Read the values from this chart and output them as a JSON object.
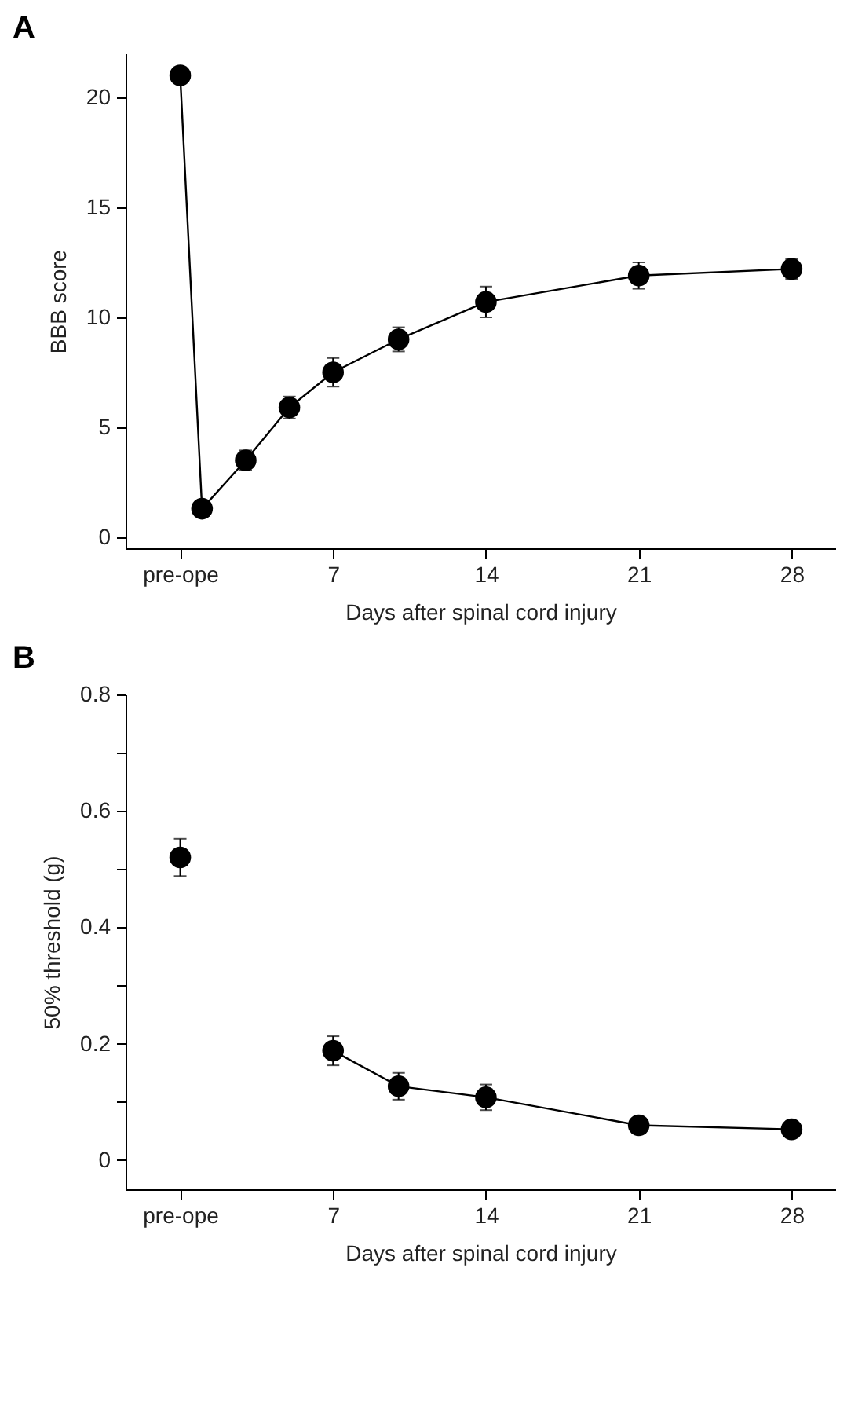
{
  "chart_data": [
    {
      "type": "line",
      "title": "A",
      "xlabel": "Days after spinal cord injury",
      "ylabel": "BBB score",
      "marker": "circle",
      "xlim": [
        -2.5,
        30
      ],
      "xticks": [
        {
          "value": 0,
          "label": "pre-ope"
        },
        7,
        14,
        21,
        28
      ],
      "ylim": [
        -0.5,
        22
      ],
      "yticks": [
        0,
        5,
        10,
        15,
        20
      ],
      "series": [
        {
          "color": "#000000",
          "x": [
            0,
            1,
            3,
            5,
            7,
            10,
            14,
            21,
            28
          ],
          "values": [
            21,
            1.3,
            3.5,
            5.9,
            7.5,
            9.0,
            10.7,
            11.9,
            12.2
          ],
          "errors": [
            null,
            null,
            0.45,
            0.5,
            0.65,
            0.55,
            0.7,
            0.6,
            0.45
          ]
        }
      ]
    },
    {
      "type": "line",
      "title": "B",
      "xlabel": "Days after spinal cord injury",
      "ylabel": "50% threshold (g)",
      "marker": "circle",
      "xlim": [
        -2.5,
        30
      ],
      "xticks": [
        {
          "value": 0,
          "label": "pre-ope"
        },
        7,
        14,
        21,
        28
      ],
      "ylim": [
        -0.05,
        0.8
      ],
      "yticks": [
        0,
        {
          "value": 0.1,
          "label": null
        },
        0.2,
        {
          "value": 0.3,
          "label": null
        },
        0.4,
        {
          "value": 0.5,
          "label": null
        },
        0.6,
        {
          "value": 0.7,
          "label": null
        },
        0.8
      ],
      "series": [
        {
          "type": "scatter",
          "color": "#000000",
          "x": [
            0
          ],
          "values": [
            0.52
          ],
          "errors": [
            0.032
          ]
        },
        {
          "type": "line",
          "color": "#000000",
          "x": [
            7,
            10,
            14,
            21,
            28
          ],
          "values": [
            0.188,
            0.127,
            0.108,
            0.06,
            0.053
          ],
          "errors": [
            0.025,
            0.023,
            0.022,
            null,
            null
          ]
        }
      ]
    }
  ]
}
